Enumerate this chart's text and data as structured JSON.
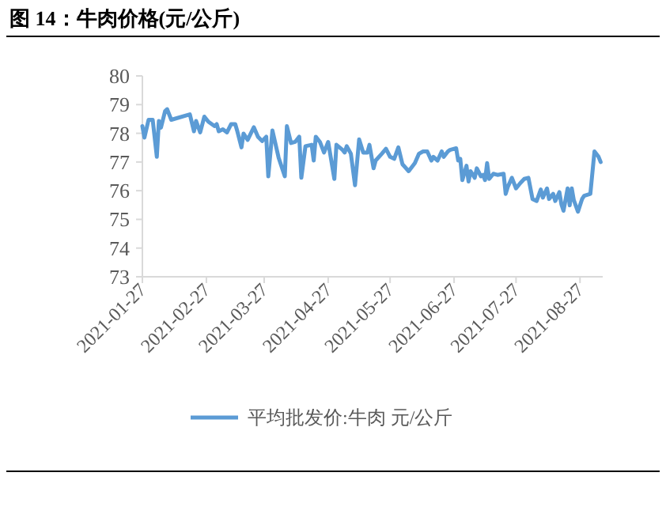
{
  "chart_data": {
    "type": "line",
    "title": "图 14：牛肉价格(元/公斤)",
    "x": [
      "2021-01-27",
      "2021-01-28",
      "2021-01-30",
      "2021-02-01",
      "2021-02-03",
      "2021-02-04",
      "2021-02-05",
      "2021-02-07",
      "2021-02-08",
      "2021-02-10",
      "2021-02-19",
      "2021-02-21",
      "2021-02-22",
      "2021-02-24",
      "2021-02-26",
      "2021-02-28",
      "2021-03-03",
      "2021-03-04",
      "2021-03-05",
      "2021-03-07",
      "2021-03-09",
      "2021-03-11",
      "2021-03-13",
      "2021-03-14",
      "2021-03-16",
      "2021-03-17",
      "2021-03-19",
      "2021-03-22",
      "2021-03-24",
      "2021-03-26",
      "2021-03-28",
      "2021-03-29",
      "2021-03-31",
      "2021-04-03",
      "2021-04-06",
      "2021-04-07",
      "2021-04-09",
      "2021-04-11",
      "2021-04-13",
      "2021-04-14",
      "2021-04-16",
      "2021-04-19",
      "2021-04-20",
      "2021-04-21",
      "2021-04-23",
      "2021-04-25",
      "2021-04-27",
      "2021-04-30",
      "2021-05-01",
      "2021-05-04",
      "2021-05-05",
      "2021-05-06",
      "2021-05-08",
      "2021-05-10",
      "2021-05-12",
      "2021-05-14",
      "2021-05-16",
      "2021-05-17",
      "2021-05-19",
      "2021-05-20",
      "2021-05-23",
      "2021-05-25",
      "2021-05-27",
      "2021-05-29",
      "2021-05-31",
      "2021-06-02",
      "2021-06-05",
      "2021-06-08",
      "2021-06-10",
      "2021-06-12",
      "2021-06-14",
      "2021-06-16",
      "2021-06-17",
      "2021-06-19",
      "2021-06-21",
      "2021-06-22",
      "2021-06-24",
      "2021-06-25",
      "2021-06-28",
      "2021-06-29",
      "2021-06-30",
      "2021-07-01",
      "2021-07-03",
      "2021-07-04",
      "2021-07-05",
      "2021-07-07",
      "2021-07-08",
      "2021-07-10",
      "2021-07-11",
      "2021-07-12",
      "2021-07-13",
      "2021-07-14",
      "2021-07-16",
      "2021-07-18",
      "2021-07-21",
      "2021-07-22",
      "2021-07-23",
      "2021-07-25",
      "2021-07-27",
      "2021-07-29",
      "2021-07-31",
      "2021-08-02",
      "2021-08-04",
      "2021-08-06",
      "2021-08-08",
      "2021-08-09",
      "2021-08-11",
      "2021-08-12",
      "2021-08-14",
      "2021-08-15",
      "2021-08-17",
      "2021-08-18",
      "2021-08-19",
      "2021-08-21",
      "2021-08-22",
      "2021-08-23",
      "2021-08-24",
      "2021-08-26",
      "2021-08-28",
      "2021-08-29",
      "2021-09-01",
      "2021-09-03",
      "2021-09-05",
      "2021-09-06"
    ],
    "series": [
      {
        "name": "平均批发价:牛肉 元/公斤",
        "color": "#5b9bd5",
        "values": [
          78.25,
          77.85,
          78.47,
          78.47,
          77.18,
          78.43,
          78.2,
          78.77,
          78.84,
          78.47,
          78.66,
          78.07,
          78.43,
          78.03,
          78.58,
          78.4,
          78.25,
          78.32,
          78.07,
          78.14,
          78.03,
          78.32,
          78.32,
          78.07,
          77.51,
          77.99,
          77.77,
          78.21,
          77.88,
          77.73,
          77.88,
          76.5,
          78.1,
          77.15,
          76.5,
          78.25,
          77.66,
          77.7,
          77.88,
          76.45,
          77.55,
          77.6,
          77.05,
          77.88,
          77.7,
          77.33,
          77.7,
          76.41,
          77.6,
          77.42,
          77.33,
          77.55,
          77.29,
          76.19,
          77.79,
          77.33,
          77.33,
          77.6,
          76.78,
          77.05,
          77.29,
          77.46,
          77.18,
          77.11,
          77.51,
          76.92,
          76.68,
          76.96,
          77.29,
          77.37,
          77.37,
          77.05,
          77.18,
          77.05,
          77.37,
          77.18,
          77.37,
          77.42,
          77.48,
          77.05,
          77.11,
          76.37,
          76.87,
          76.32,
          76.68,
          76.45,
          76.78,
          76.5,
          76.55,
          76.37,
          76.96,
          76.41,
          76.59,
          76.55,
          76.59,
          75.89,
          76.13,
          76.45,
          76.08,
          76.26,
          76.41,
          76.45,
          75.71,
          75.64,
          76.04,
          75.76,
          76.08,
          75.71,
          75.89,
          75.64,
          75.95,
          75.52,
          75.3,
          76.08,
          75.49,
          76.08,
          75.67,
          75.27,
          75.71,
          75.82,
          75.89,
          77.37,
          77.18,
          77.0
        ]
      }
    ],
    "xlim": [
      "2021-01-27",
      "2021-09-07"
    ],
    "xticks": [
      "2021-01-27",
      "2021-02-27",
      "2021-03-27",
      "2021-04-27",
      "2021-05-27",
      "2021-06-27",
      "2021-07-27",
      "2021-08-27"
    ],
    "ylim": [
      73,
      80
    ],
    "yticks": [
      73,
      74,
      75,
      76,
      77,
      78,
      79,
      80
    ],
    "legend": "bottom",
    "line_style": "solid"
  }
}
